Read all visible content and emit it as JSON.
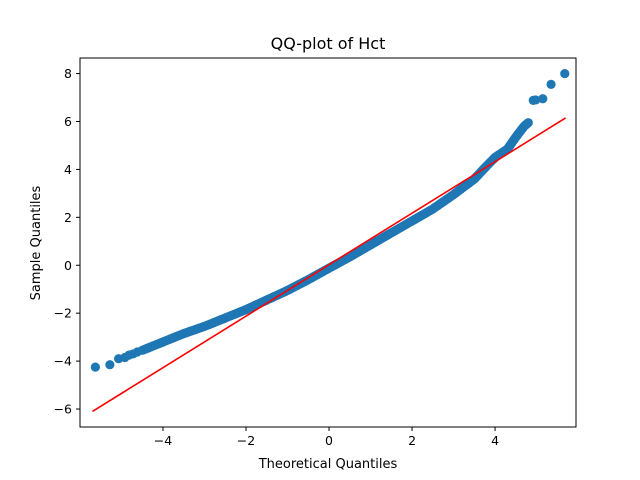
{
  "chart_data": {
    "type": "scatter",
    "title": "QQ-plot of Hct",
    "xlabel": "Theoretical Quantiles",
    "ylabel": "Sample Quantiles",
    "xlim": [
      -6.0,
      5.95
    ],
    "ylim": [
      -6.75,
      8.65
    ],
    "x_ticks": [
      -4,
      -2,
      0,
      2,
      4
    ],
    "x_tick_labels": [
      "−4",
      "−2",
      "0",
      "2",
      "4"
    ],
    "y_ticks": [
      -6,
      -4,
      -2,
      0,
      2,
      4,
      6,
      8
    ],
    "y_tick_labels": [
      "−6",
      "−4",
      "−2",
      "0",
      "2",
      "4",
      "6",
      "8"
    ],
    "grid": false,
    "series": [
      {
        "marker_color": "#1f77b4",
        "curve": [
          [
            -4.5,
            -3.55
          ],
          [
            -4.0,
            -3.2
          ],
          [
            -3.5,
            -2.85
          ],
          [
            -3.0,
            -2.55
          ],
          [
            -2.5,
            -2.2
          ],
          [
            -2.0,
            -1.85
          ],
          [
            -1.5,
            -1.45
          ],
          [
            -1.0,
            -1.05
          ],
          [
            -0.5,
            -0.6
          ],
          [
            0.0,
            -0.12
          ],
          [
            0.5,
            0.35
          ],
          [
            1.0,
            0.85
          ],
          [
            1.5,
            1.35
          ],
          [
            2.0,
            1.85
          ],
          [
            2.5,
            2.35
          ],
          [
            3.0,
            2.95
          ],
          [
            3.5,
            3.6
          ],
          [
            3.8,
            4.15
          ],
          [
            4.0,
            4.5
          ],
          [
            4.3,
            4.85
          ],
          [
            4.5,
            5.35
          ],
          [
            4.7,
            5.8
          ],
          [
            4.8,
            5.95
          ]
        ],
        "points": [
          [
            -5.63,
            -4.25
          ],
          [
            -5.28,
            -4.15
          ],
          [
            -5.07,
            -3.9
          ],
          [
            -4.92,
            -3.85
          ],
          [
            -4.82,
            -3.75
          ],
          [
            -4.72,
            -3.7
          ],
          [
            -4.62,
            -3.62
          ],
          [
            5.68,
            8.0
          ],
          [
            5.35,
            7.55
          ],
          [
            5.15,
            6.95
          ],
          [
            4.98,
            6.9
          ],
          [
            4.92,
            6.88
          ]
        ]
      },
      {
        "line_color": "#ff0000",
        "line": [
          [
            -5.7,
            -6.1
          ],
          [
            5.7,
            6.15
          ]
        ]
      }
    ]
  }
}
